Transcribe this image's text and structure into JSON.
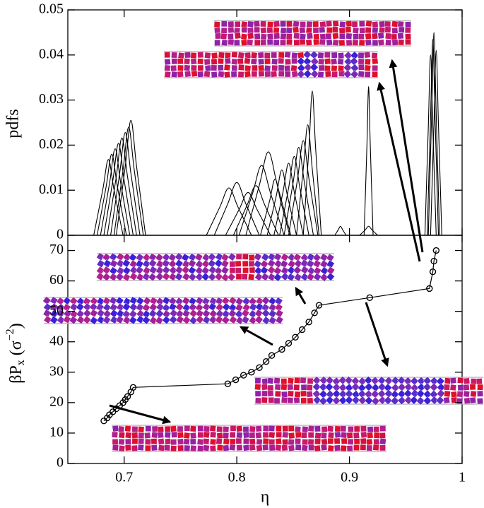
{
  "chart_data": [
    {
      "type": "line",
      "ylabel": "pdfs",
      "color": "#000000",
      "xlim": [
        0.65,
        1.0
      ],
      "ylim": [
        0,
        0.05
      ],
      "yticks": [
        0,
        0.01,
        0.02,
        0.03,
        0.04,
        0.05
      ],
      "series": [
        {
          "x": [
            0.673,
            0.681,
            0.686,
            0.691,
            0.699
          ],
          "values": [
            0,
            0.0101,
            0.0168,
            0.0101,
            0
          ]
        },
        {
          "x": [
            0.676,
            0.684,
            0.689,
            0.694,
            0.702
          ],
          "values": [
            0,
            0.0108,
            0.018,
            0.0108,
            0
          ]
        },
        {
          "x": [
            0.679,
            0.687,
            0.692,
            0.697,
            0.705
          ],
          "values": [
            0,
            0.0115,
            0.0192,
            0.0115,
            0
          ]
        },
        {
          "x": [
            0.682,
            0.69,
            0.695,
            0.7,
            0.708
          ],
          "values": [
            0,
            0.0122,
            0.0204,
            0.0122,
            0
          ]
        },
        {
          "x": [
            0.685,
            0.693,
            0.698,
            0.703,
            0.711
          ],
          "values": [
            0,
            0.013,
            0.0216,
            0.013,
            0
          ]
        },
        {
          "x": [
            0.688,
            0.696,
            0.701,
            0.706,
            0.714
          ],
          "values": [
            0,
            0.0137,
            0.0228,
            0.0137,
            0
          ]
        },
        {
          "x": [
            0.691,
            0.699,
            0.704,
            0.709,
            0.717
          ],
          "values": [
            0,
            0.0144,
            0.024,
            0.0144,
            0
          ]
        },
        {
          "x": [
            0.693,
            0.701,
            0.706,
            0.711,
            0.719
          ],
          "values": [
            0,
            0.0153,
            0.0255,
            0.0153,
            0
          ]
        },
        {
          "x": [
            0.773,
            0.785,
            0.793,
            0.801,
            0.813
          ],
          "values": [
            0,
            0.0063,
            0.0105,
            0.0063,
            0
          ]
        },
        {
          "x": [
            0.78,
            0.792,
            0.8,
            0.808,
            0.82
          ],
          "values": [
            0,
            0.007,
            0.0117,
            0.007,
            0
          ]
        },
        {
          "x": [
            0.79,
            0.802,
            0.81,
            0.818,
            0.83
          ],
          "values": [
            0,
            0.0057,
            0.0095,
            0.0057,
            0
          ]
        },
        {
          "x": [
            0.797,
            0.809,
            0.817,
            0.825,
            0.837
          ],
          "values": [
            0,
            0.0066,
            0.011,
            0.0066,
            0
          ]
        },
        {
          "x": [
            0.802,
            0.814,
            0.822,
            0.83,
            0.842
          ],
          "values": [
            0,
            0.0093,
            0.0155,
            0.0093,
            0
          ]
        },
        {
          "x": [
            0.808,
            0.82,
            0.828,
            0.836,
            0.848
          ],
          "values": [
            0,
            0.0111,
            0.0185,
            0.0111,
            0
          ]
        },
        {
          "x": [
            0.821,
            0.829,
            0.834,
            0.839,
            0.847
          ],
          "values": [
            0,
            0.0075,
            0.0125,
            0.0075,
            0
          ]
        },
        {
          "x": [
            0.827,
            0.835,
            0.84,
            0.845,
            0.853
          ],
          "values": [
            0,
            0.0087,
            0.0145,
            0.0087,
            0
          ]
        },
        {
          "x": [
            0.833,
            0.841,
            0.846,
            0.851,
            0.859
          ],
          "values": [
            0,
            0.0096,
            0.016,
            0.0096,
            0
          ]
        },
        {
          "x": [
            0.838,
            0.846,
            0.851,
            0.856,
            0.864
          ],
          "values": [
            0,
            0.0105,
            0.0175,
            0.0105,
            0
          ]
        },
        {
          "x": [
            0.842,
            0.85,
            0.855,
            0.86,
            0.868
          ],
          "values": [
            0,
            0.0117,
            0.0195,
            0.0117,
            0
          ]
        },
        {
          "x": [
            0.846,
            0.854,
            0.859,
            0.864,
            0.872
          ],
          "values": [
            0,
            0.0126,
            0.021,
            0.0126,
            0
          ]
        },
        {
          "x": [
            0.853,
            0.859,
            0.863,
            0.867,
            0.873
          ],
          "values": [
            0,
            0.0147,
            0.0245,
            0.0147,
            0
          ]
        },
        {
          "x": [
            0.859,
            0.864,
            0.867,
            0.87,
            0.875
          ],
          "values": [
            0,
            0.0192,
            0.032,
            0.0192,
            0
          ]
        },
        {
          "x": [
            0.887,
            0.89,
            0.892,
            0.894,
            0.897
          ],
          "values": [
            0,
            0.0012,
            0.002,
            0.0012,
            0
          ]
        },
        {
          "x": [
            0.909,
            0.914,
            0.917,
            0.92,
            0.925
          ],
          "values": [
            0,
            0.0012,
            0.002,
            0.0012,
            0
          ]
        },
        {
          "x": [
            0.913,
            0.9155,
            0.917,
            0.9185,
            0.921
          ],
          "values": [
            0,
            0.0198,
            0.033,
            0.0198,
            0
          ]
        },
        {
          "x": [
            0.967,
            0.97,
            0.972,
            0.974,
            0.977
          ],
          "values": [
            0,
            0.024,
            0.04,
            0.024,
            0
          ]
        },
        {
          "x": [
            0.969,
            0.972,
            0.974,
            0.976,
            0.979
          ],
          "values": [
            0,
            0.0261,
            0.0435,
            0.0261,
            0
          ]
        },
        {
          "x": [
            0.97,
            0.973,
            0.975,
            0.977,
            0.98
          ],
          "values": [
            0,
            0.027,
            0.045,
            0.027,
            0
          ]
        },
        {
          "x": [
            0.972,
            0.975,
            0.977,
            0.979,
            0.982
          ],
          "values": [
            0,
            0.0246,
            0.041,
            0.0246,
            0
          ]
        }
      ]
    },
    {
      "type": "scatter-line",
      "xlabel": "η",
      "ylabel": {
        "main": "βP",
        "sub": "x",
        "unit": "(σ",
        "sup": "−2",
        "close": ")"
      },
      "color": "#000000",
      "marker": "open-circle",
      "xlim": [
        0.65,
        1.0
      ],
      "xticks": [
        0.7,
        0.8,
        0.9,
        1
      ],
      "ylim": [
        0,
        75
      ],
      "yticks": [
        0,
        10,
        20,
        30,
        40,
        50,
        60,
        70
      ],
      "series": [
        {
          "x": [
            0.682,
            0.685,
            0.687,
            0.69,
            0.693,
            0.696,
            0.699,
            0.701,
            0.703,
            0.706,
            0.708,
            0.792,
            0.799,
            0.806,
            0.813,
            0.82,
            0.826,
            0.831,
            0.84,
            0.846,
            0.852,
            0.858,
            0.864,
            0.869,
            0.873,
            0.918,
            0.971,
            0.974,
            0.975,
            0.977
          ],
          "values": [
            14,
            15,
            16,
            17,
            18,
            19,
            20,
            21,
            22,
            23.5,
            25,
            26.2,
            27.5,
            29,
            30,
            31.5,
            33.5,
            35.5,
            37.5,
            39.5,
            41.5,
            44,
            46.5,
            49.5,
            52,
            54.5,
            57.5,
            63,
            66.5,
            70
          ]
        }
      ]
    }
  ]
}
